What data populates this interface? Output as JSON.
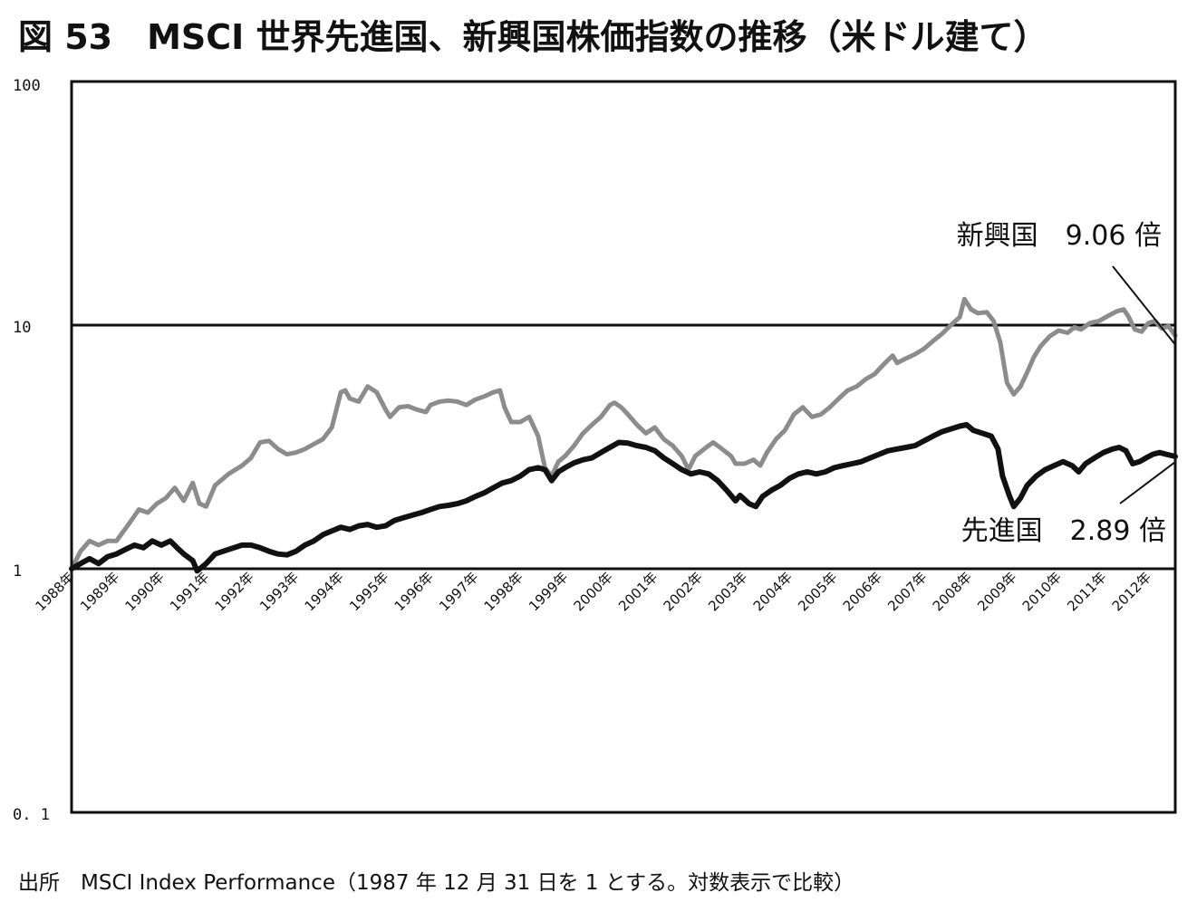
{
  "title": "図 53　MSCI 世界先進国、新興国株価指数の推移（米ドル建て）",
  "source": "出所　MSCI Index Performance（1987 年 12 月 31 日を 1 とする。対数表示で比較）",
  "chart_data": {
    "type": "line",
    "title": "図 53　MSCI 世界先進国、新興国株価指数の推移（米ドル建て）",
    "xlabel": "",
    "ylabel": "",
    "yscale": "log",
    "ylim": [
      0.1,
      100
    ],
    "xlim": [
      1988.0,
      2012.6
    ],
    "y_tick_labels": [
      "100",
      "10",
      "1",
      "0. 1"
    ],
    "y_tick_values": [
      100,
      10,
      1,
      0.1
    ],
    "x_tick_labels": [
      "1988年",
      "1989年",
      "1990年",
      "1991年",
      "1992年",
      "1993年",
      "1994年",
      "1995年",
      "1996年",
      "1997年",
      "1998年",
      "1999年",
      "2000年",
      "2001年",
      "2002年",
      "2003年",
      "2004年",
      "2005年",
      "2006年",
      "2007年",
      "2008年",
      "2009年",
      "2010年",
      "2011年",
      "2012年"
    ],
    "x_tick_values": [
      1988,
      1989,
      1990,
      1991,
      1992,
      1993,
      1994,
      1995,
      1996,
      1997,
      1998,
      1999,
      2000,
      2001,
      2002,
      2003,
      2004,
      2005,
      2006,
      2007,
      2008,
      2009,
      2010,
      2011,
      2012
    ],
    "grid": "horizontal line at 10",
    "series": [
      {
        "name": "新興国",
        "color": "#8c8c8c",
        "end_label": "新興国　9.06 倍",
        "points": [
          [
            1988.0,
            1.0
          ],
          [
            1988.2,
            1.18
          ],
          [
            1988.4,
            1.3
          ],
          [
            1988.6,
            1.25
          ],
          [
            1988.8,
            1.3
          ],
          [
            1989.0,
            1.3
          ],
          [
            1989.3,
            1.55
          ],
          [
            1989.5,
            1.75
          ],
          [
            1989.7,
            1.7
          ],
          [
            1989.9,
            1.85
          ],
          [
            1990.1,
            1.95
          ],
          [
            1990.3,
            2.15
          ],
          [
            1990.5,
            1.9
          ],
          [
            1990.7,
            2.25
          ],
          [
            1990.85,
            1.85
          ],
          [
            1991.0,
            1.8
          ],
          [
            1991.2,
            2.2
          ],
          [
            1991.5,
            2.45
          ],
          [
            1991.8,
            2.65
          ],
          [
            1992.0,
            2.85
          ],
          [
            1992.2,
            3.3
          ],
          [
            1992.4,
            3.35
          ],
          [
            1992.6,
            3.1
          ],
          [
            1992.8,
            2.95
          ],
          [
            1993.0,
            3.0
          ],
          [
            1993.2,
            3.1
          ],
          [
            1993.4,
            3.25
          ],
          [
            1993.6,
            3.4
          ],
          [
            1993.8,
            3.8
          ],
          [
            1994.0,
            5.3
          ],
          [
            1994.1,
            5.4
          ],
          [
            1994.2,
            5.0
          ],
          [
            1994.4,
            4.85
          ],
          [
            1994.6,
            5.6
          ],
          [
            1994.8,
            5.3
          ],
          [
            1995.0,
            4.5
          ],
          [
            1995.1,
            4.2
          ],
          [
            1995.3,
            4.6
          ],
          [
            1995.5,
            4.65
          ],
          [
            1995.7,
            4.5
          ],
          [
            1995.9,
            4.4
          ],
          [
            1996.0,
            4.7
          ],
          [
            1996.2,
            4.85
          ],
          [
            1996.4,
            4.9
          ],
          [
            1996.6,
            4.85
          ],
          [
            1996.8,
            4.7
          ],
          [
            1997.0,
            4.95
          ],
          [
            1997.2,
            5.1
          ],
          [
            1997.4,
            5.3
          ],
          [
            1997.55,
            5.4
          ],
          [
            1997.65,
            4.6
          ],
          [
            1997.8,
            4.0
          ],
          [
            1998.0,
            4.0
          ],
          [
            1998.2,
            4.2
          ],
          [
            1998.4,
            3.5
          ],
          [
            1998.55,
            2.6
          ],
          [
            1998.7,
            2.4
          ],
          [
            1998.85,
            2.75
          ],
          [
            1999.0,
            2.9
          ],
          [
            1999.2,
            3.2
          ],
          [
            1999.4,
            3.6
          ],
          [
            1999.6,
            3.9
          ],
          [
            1999.8,
            4.2
          ],
          [
            2000.0,
            4.7
          ],
          [
            2000.1,
            4.8
          ],
          [
            2000.25,
            4.6
          ],
          [
            2000.4,
            4.3
          ],
          [
            2000.6,
            3.9
          ],
          [
            2000.8,
            3.6
          ],
          [
            2001.0,
            3.8
          ],
          [
            2001.2,
            3.4
          ],
          [
            2001.4,
            3.2
          ],
          [
            2001.6,
            2.9
          ],
          [
            2001.75,
            2.55
          ],
          [
            2001.9,
            2.9
          ],
          [
            2002.1,
            3.1
          ],
          [
            2002.3,
            3.3
          ],
          [
            2002.5,
            3.1
          ],
          [
            2002.7,
            2.9
          ],
          [
            2002.8,
            2.7
          ],
          [
            2003.0,
            2.7
          ],
          [
            2003.2,
            2.8
          ],
          [
            2003.35,
            2.65
          ],
          [
            2003.5,
            3.0
          ],
          [
            2003.7,
            3.4
          ],
          [
            2003.9,
            3.7
          ],
          [
            2004.1,
            4.3
          ],
          [
            2004.3,
            4.6
          ],
          [
            2004.5,
            4.2
          ],
          [
            2004.7,
            4.3
          ],
          [
            2004.9,
            4.6
          ],
          [
            2005.1,
            5.0
          ],
          [
            2005.3,
            5.4
          ],
          [
            2005.5,
            5.6
          ],
          [
            2005.7,
            6.0
          ],
          [
            2005.9,
            6.3
          ],
          [
            2006.1,
            6.9
          ],
          [
            2006.3,
            7.5
          ],
          [
            2006.4,
            7.0
          ],
          [
            2006.6,
            7.3
          ],
          [
            2006.8,
            7.6
          ],
          [
            2007.0,
            8.0
          ],
          [
            2007.2,
            8.6
          ],
          [
            2007.4,
            9.2
          ],
          [
            2007.6,
            10.0
          ],
          [
            2007.8,
            10.8
          ],
          [
            2007.9,
            12.8
          ],
          [
            2008.05,
            11.6
          ],
          [
            2008.2,
            11.2
          ],
          [
            2008.4,
            11.3
          ],
          [
            2008.55,
            10.4
          ],
          [
            2008.7,
            8.5
          ],
          [
            2008.85,
            5.8
          ],
          [
            2009.0,
            5.2
          ],
          [
            2009.15,
            5.6
          ],
          [
            2009.3,
            6.4
          ],
          [
            2009.45,
            7.4
          ],
          [
            2009.6,
            8.2
          ],
          [
            2009.8,
            9.0
          ],
          [
            2010.0,
            9.5
          ],
          [
            2010.2,
            9.3
          ],
          [
            2010.35,
            9.8
          ],
          [
            2010.5,
            9.6
          ],
          [
            2010.7,
            10.2
          ],
          [
            2010.9,
            10.4
          ],
          [
            2011.1,
            10.9
          ],
          [
            2011.3,
            11.4
          ],
          [
            2011.45,
            11.6
          ],
          [
            2011.55,
            10.9
          ],
          [
            2011.7,
            9.6
          ],
          [
            2011.85,
            9.4
          ],
          [
            2012.0,
            10.2
          ],
          [
            2012.15,
            10.4
          ],
          [
            2012.3,
            9.7
          ],
          [
            2012.45,
            9.9
          ],
          [
            2012.6,
            9.06
          ]
        ]
      },
      {
        "name": "先進国",
        "color": "#111111",
        "end_label": "先進国　2.89 倍",
        "points": [
          [
            1988.0,
            1.0
          ],
          [
            1988.2,
            1.05
          ],
          [
            1988.4,
            1.1
          ],
          [
            1988.6,
            1.05
          ],
          [
            1988.8,
            1.12
          ],
          [
            1989.0,
            1.15
          ],
          [
            1989.2,
            1.2
          ],
          [
            1989.4,
            1.25
          ],
          [
            1989.6,
            1.22
          ],
          [
            1989.8,
            1.3
          ],
          [
            1990.0,
            1.25
          ],
          [
            1990.2,
            1.3
          ],
          [
            1990.35,
            1.22
          ],
          [
            1990.5,
            1.15
          ],
          [
            1990.7,
            1.08
          ],
          [
            1990.8,
            0.98
          ],
          [
            1991.0,
            1.05
          ],
          [
            1991.2,
            1.15
          ],
          [
            1991.5,
            1.2
          ],
          [
            1991.8,
            1.25
          ],
          [
            1992.0,
            1.25
          ],
          [
            1992.2,
            1.22
          ],
          [
            1992.4,
            1.18
          ],
          [
            1992.6,
            1.15
          ],
          [
            1992.8,
            1.14
          ],
          [
            1993.0,
            1.18
          ],
          [
            1993.2,
            1.25
          ],
          [
            1993.4,
            1.3
          ],
          [
            1993.6,
            1.38
          ],
          [
            1993.8,
            1.43
          ],
          [
            1994.0,
            1.48
          ],
          [
            1994.2,
            1.45
          ],
          [
            1994.4,
            1.5
          ],
          [
            1994.6,
            1.52
          ],
          [
            1994.8,
            1.48
          ],
          [
            1995.0,
            1.5
          ],
          [
            1995.2,
            1.58
          ],
          [
            1995.4,
            1.62
          ],
          [
            1995.6,
            1.66
          ],
          [
            1995.8,
            1.7
          ],
          [
            1996.0,
            1.75
          ],
          [
            1996.2,
            1.8
          ],
          [
            1996.4,
            1.82
          ],
          [
            1996.6,
            1.85
          ],
          [
            1996.8,
            1.9
          ],
          [
            1997.0,
            1.98
          ],
          [
            1997.2,
            2.05
          ],
          [
            1997.4,
            2.15
          ],
          [
            1997.6,
            2.25
          ],
          [
            1997.8,
            2.3
          ],
          [
            1998.0,
            2.4
          ],
          [
            1998.2,
            2.55
          ],
          [
            1998.4,
            2.6
          ],
          [
            1998.55,
            2.55
          ],
          [
            1998.7,
            2.3
          ],
          [
            1998.85,
            2.5
          ],
          [
            1999.0,
            2.6
          ],
          [
            1999.2,
            2.72
          ],
          [
            1999.4,
            2.8
          ],
          [
            1999.6,
            2.85
          ],
          [
            1999.8,
            3.0
          ],
          [
            2000.0,
            3.15
          ],
          [
            2000.2,
            3.3
          ],
          [
            2000.4,
            3.28
          ],
          [
            2000.6,
            3.2
          ],
          [
            2000.8,
            3.15
          ],
          [
            2001.0,
            3.05
          ],
          [
            2001.2,
            2.85
          ],
          [
            2001.4,
            2.7
          ],
          [
            2001.6,
            2.55
          ],
          [
            2001.8,
            2.45
          ],
          [
            2002.0,
            2.5
          ],
          [
            2002.2,
            2.45
          ],
          [
            2002.4,
            2.3
          ],
          [
            2002.6,
            2.1
          ],
          [
            2002.8,
            1.9
          ],
          [
            2002.9,
            2.0
          ],
          [
            2003.1,
            1.85
          ],
          [
            2003.25,
            1.8
          ],
          [
            2003.4,
            1.98
          ],
          [
            2003.6,
            2.1
          ],
          [
            2003.8,
            2.2
          ],
          [
            2004.0,
            2.35
          ],
          [
            2004.2,
            2.45
          ],
          [
            2004.4,
            2.5
          ],
          [
            2004.6,
            2.45
          ],
          [
            2004.8,
            2.5
          ],
          [
            2005.0,
            2.6
          ],
          [
            2005.2,
            2.65
          ],
          [
            2005.4,
            2.7
          ],
          [
            2005.6,
            2.75
          ],
          [
            2005.8,
            2.85
          ],
          [
            2006.0,
            2.95
          ],
          [
            2006.2,
            3.05
          ],
          [
            2006.4,
            3.1
          ],
          [
            2006.6,
            3.15
          ],
          [
            2006.8,
            3.2
          ],
          [
            2007.0,
            3.35
          ],
          [
            2007.2,
            3.5
          ],
          [
            2007.4,
            3.65
          ],
          [
            2007.6,
            3.75
          ],
          [
            2007.8,
            3.85
          ],
          [
            2007.95,
            3.9
          ],
          [
            2008.1,
            3.7
          ],
          [
            2008.3,
            3.6
          ],
          [
            2008.5,
            3.5
          ],
          [
            2008.65,
            3.1
          ],
          [
            2008.75,
            2.4
          ],
          [
            2008.9,
            2.0
          ],
          [
            2009.0,
            1.8
          ],
          [
            2009.15,
            1.95
          ],
          [
            2009.3,
            2.2
          ],
          [
            2009.5,
            2.4
          ],
          [
            2009.7,
            2.55
          ],
          [
            2009.9,
            2.65
          ],
          [
            2010.1,
            2.75
          ],
          [
            2010.3,
            2.65
          ],
          [
            2010.45,
            2.5
          ],
          [
            2010.6,
            2.7
          ],
          [
            2010.8,
            2.85
          ],
          [
            2011.0,
            3.0
          ],
          [
            2011.2,
            3.1
          ],
          [
            2011.35,
            3.15
          ],
          [
            2011.5,
            3.05
          ],
          [
            2011.65,
            2.7
          ],
          [
            2011.8,
            2.75
          ],
          [
            2011.95,
            2.85
          ],
          [
            2012.1,
            2.95
          ],
          [
            2012.25,
            3.0
          ],
          [
            2012.4,
            2.95
          ],
          [
            2012.6,
            2.89
          ]
        ]
      }
    ],
    "annotations": [
      {
        "text": "新興国　9.06 倍",
        "series": "新興国"
      },
      {
        "text": "先進国　2.89 倍",
        "series": "先進国"
      }
    ]
  }
}
